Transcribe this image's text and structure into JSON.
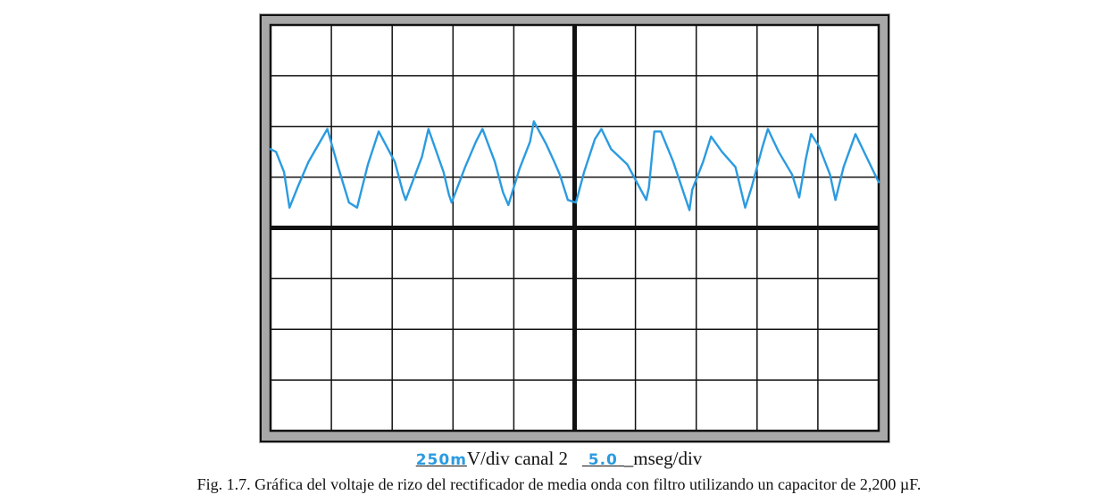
{
  "chart_data": {
    "type": "line",
    "title": "",
    "grid": true,
    "divisions": {
      "x": 10,
      "y": 8
    },
    "series": [
      {
        "color": "#2b9be0",
        "points": [
          [
            0.0,
            1.55
          ],
          [
            0.1,
            1.5
          ],
          [
            0.25,
            1.1
          ],
          [
            0.35,
            0.4
          ],
          [
            0.5,
            0.8
          ],
          [
            0.7,
            1.3
          ],
          [
            1.05,
            1.95
          ],
          [
            1.25,
            1.2
          ],
          [
            1.45,
            0.5
          ],
          [
            1.6,
            0.4
          ],
          [
            1.8,
            1.25
          ],
          [
            2.0,
            1.9
          ],
          [
            2.3,
            1.3
          ],
          [
            2.45,
            0.7
          ],
          [
            2.5,
            0.55
          ],
          [
            2.8,
            1.4
          ],
          [
            2.92,
            1.95
          ],
          [
            3.2,
            1.1
          ],
          [
            3.3,
            0.65
          ],
          [
            3.35,
            0.5
          ],
          [
            3.6,
            1.2
          ],
          [
            3.8,
            1.7
          ],
          [
            3.92,
            1.95
          ],
          [
            4.15,
            1.3
          ],
          [
            4.3,
            0.7
          ],
          [
            4.4,
            0.45
          ],
          [
            4.6,
            1.15
          ],
          [
            4.8,
            1.7
          ],
          [
            4.87,
            2.1
          ],
          [
            5.1,
            1.65
          ],
          [
            5.25,
            1.3
          ],
          [
            5.35,
            1.05
          ],
          [
            5.5,
            0.55
          ],
          [
            5.65,
            0.5
          ],
          [
            5.8,
            1.1
          ],
          [
            6.0,
            1.75
          ],
          [
            6.12,
            1.95
          ],
          [
            6.3,
            1.55
          ],
          [
            6.6,
            1.25
          ],
          [
            6.75,
            0.95
          ],
          [
            6.95,
            0.55
          ],
          [
            7.0,
            0.8
          ],
          [
            7.1,
            1.9
          ],
          [
            7.22,
            1.9
          ],
          [
            7.45,
            1.3
          ],
          [
            7.75,
            0.35
          ],
          [
            7.8,
            0.75
          ],
          [
            8.0,
            1.3
          ],
          [
            8.15,
            1.8
          ],
          [
            8.35,
            1.5
          ],
          [
            8.6,
            1.2
          ],
          [
            8.78,
            0.4
          ],
          [
            8.9,
            0.8
          ],
          [
            9.1,
            1.6
          ],
          [
            9.2,
            1.95
          ],
          [
            9.4,
            1.5
          ],
          [
            9.65,
            1.05
          ],
          [
            9.78,
            0.6
          ],
          [
            9.9,
            1.35
          ],
          [
            10.0,
            1.85
          ],
          [
            10.15,
            1.6
          ],
          [
            10.35,
            1.05
          ],
          [
            10.45,
            0.55
          ],
          [
            10.6,
            1.2
          ],
          [
            10.82,
            1.85
          ],
          [
            11.0,
            1.45
          ],
          [
            11.25,
            0.9
          ]
        ]
      }
    ]
  },
  "labels": {
    "volt_value": "250m",
    "volt_unit": "V/div canal 2",
    "time_value": "5.0",
    "time_unit": "mseg/div"
  },
  "caption": "Fig. 1.7. Gráfica del voltaje de rizo del rectificador de media onda con filtro utilizando un capacitor de 2,200 µF."
}
